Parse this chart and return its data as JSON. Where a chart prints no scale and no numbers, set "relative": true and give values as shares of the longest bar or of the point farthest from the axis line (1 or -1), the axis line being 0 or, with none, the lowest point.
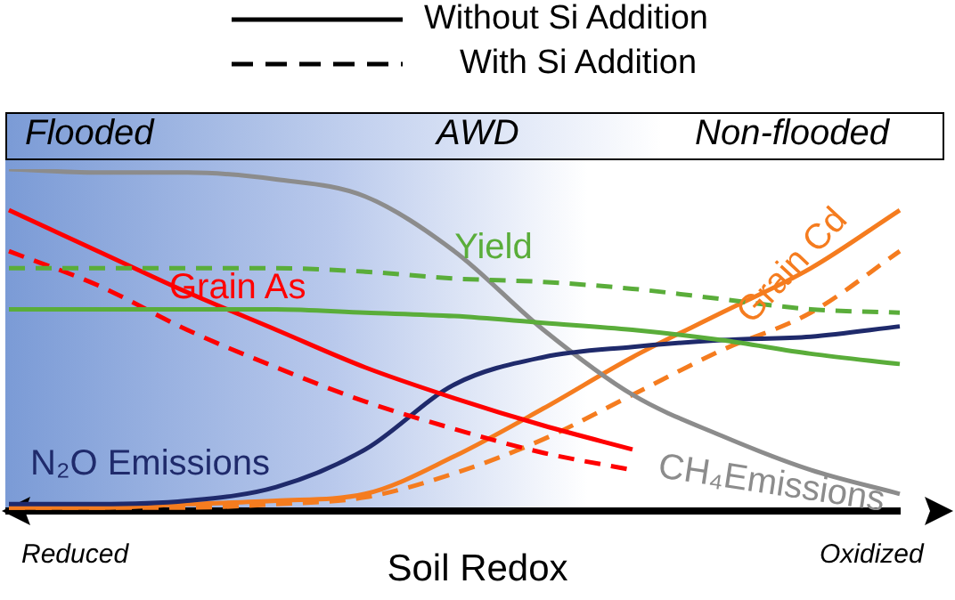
{
  "chart_data": {
    "type": "line",
    "relative": true,
    "xlabel": "Soil Redox",
    "categories": [
      null,
      null,
      null,
      null,
      null,
      null,
      null,
      null,
      null,
      null,
      null
    ],
    "series": [
      {
        "name": "Yield",
        "color": "#5aad3a",
        "line_style": "solid",
        "values": [
          0.59,
          0.59,
          0.59,
          0.59,
          0.58,
          0.57,
          0.55,
          0.53,
          0.5,
          0.46,
          0.43
        ]
      },
      {
        "color": "#5aad3a",
        "line_style": "dashed",
        "values": [
          0.71,
          0.71,
          0.71,
          0.71,
          0.7,
          0.68,
          0.67,
          0.65,
          0.62,
          0.59,
          0.58
        ]
      },
      {
        "name": "Grain As",
        "color": "#ff0000",
        "line_style": "solid",
        "values": [
          0.88,
          0.76,
          0.64,
          0.53,
          0.42,
          0.33,
          0.25,
          0.18,
          null,
          null,
          null
        ]
      },
      {
        "color": "#ff0000",
        "line_style": "dashed",
        "values": [
          0.76,
          0.66,
          0.53,
          0.42,
          0.32,
          0.24,
          0.17,
          0.12,
          null,
          null,
          null
        ]
      },
      {
        "name": "N₂O Emissions",
        "color": "#1f2a6b",
        "line_style": "solid",
        "values": [
          0.02,
          0.02,
          0.03,
          0.07,
          0.18,
          0.37,
          0.45,
          0.48,
          0.5,
          0.51,
          0.54
        ]
      },
      {
        "name": "CH₄Emissions",
        "color": "#8c8c8c",
        "line_style": "solid",
        "values": [
          1,
          0.99,
          0.99,
          0.97,
          0.92,
          0.76,
          0.53,
          0.34,
          0.22,
          0.12,
          0.05
        ]
      },
      {
        "color": "#f57c1f",
        "line_style": "solid",
        "values": [
          0.01,
          0.01,
          0.02,
          0.03,
          0.05,
          0.16,
          0.3,
          0.45,
          0.58,
          0.71,
          0.88
        ]
      },
      {
        "name": "Grain Cd",
        "color": "#f57c1f",
        "line_style": "dashed",
        "values": [
          0.01,
          0.01,
          0.01,
          0.02,
          0.04,
          0.11,
          0.21,
          0.34,
          0.47,
          0.58,
          0.76
        ]
      }
    ],
    "annotations": [
      "Without Si Addition",
      "With Si Addition",
      "Flooded",
      "AWD",
      "Non-flooded",
      "Reduced",
      "Oxidized"
    ]
  }
}
